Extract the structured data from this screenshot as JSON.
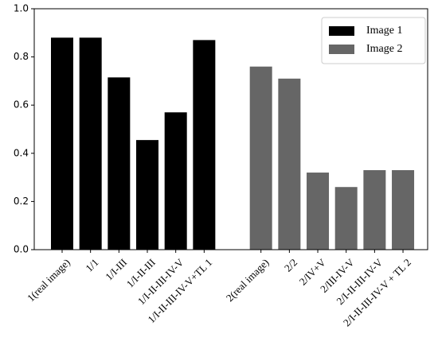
{
  "chart_data": {
    "type": "bar",
    "categories": [
      "1(real image)",
      "1/1",
      "1/I-III",
      "1/I-II-III",
      "1/I-II-III-IV-V",
      "1/I-II-III-IV-V+TL 1",
      null,
      "2(real image)",
      "2/2",
      "2/IV+V",
      "2/III-IV-V",
      "2/I-II-III-IV-V",
      "2/I-II-III-IV-V + TL 2"
    ],
    "series": [
      {
        "name": "Image 1",
        "color": "#000000",
        "values": [
          0.88,
          0.88,
          0.715,
          0.455,
          0.57,
          0.87,
          null,
          null,
          null,
          null,
          null,
          null,
          null
        ]
      },
      {
        "name": "Image 2",
        "color": "#666666",
        "values": [
          null,
          null,
          null,
          null,
          null,
          null,
          null,
          0.76,
          0.71,
          0.32,
          0.26,
          0.33,
          0.33
        ]
      }
    ],
    "ylim": [
      0,
      1
    ],
    "yticks": [
      {
        "value": 0,
        "label": "0.0"
      },
      {
        "value": 0.2,
        "label": "0.2"
      },
      {
        "value": 0.4,
        "label": "0.4"
      },
      {
        "value": 0.6,
        "label": "0.6"
      },
      {
        "value": 0.8,
        "label": "0.8"
      },
      {
        "value": 1,
        "label": "1.0"
      }
    ],
    "legend": "upper right"
  }
}
